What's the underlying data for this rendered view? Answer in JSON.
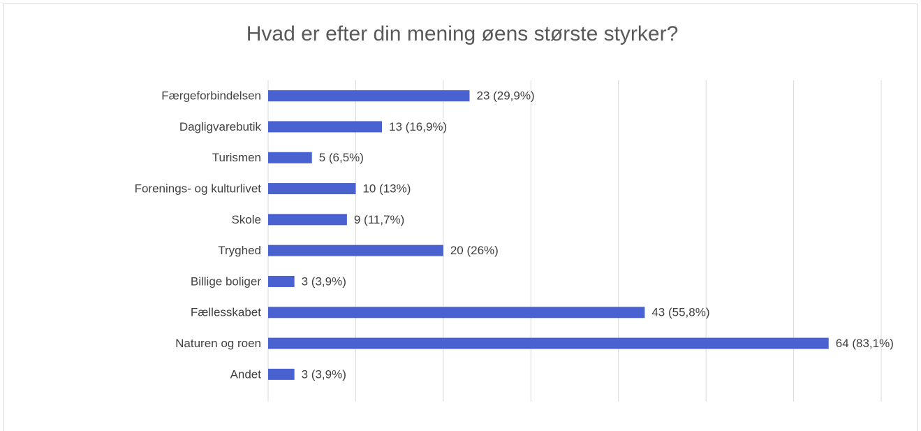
{
  "chart_data": {
    "type": "bar",
    "orientation": "horizontal",
    "title": "Hvad er efter din mening øens største styrker?",
    "categories": [
      "Færgeforbindelsen",
      "Dagligvarebutik",
      "Turismen",
      "Forenings- og kulturlivet",
      "Skole",
      "Tryghed",
      "Billige boliger",
      "Fællesskabet",
      "Naturen og roen",
      "Andet"
    ],
    "values": [
      23,
      13,
      5,
      10,
      9,
      20,
      3,
      43,
      64,
      3
    ],
    "value_labels": [
      "23 (29,9%)",
      "13 (16,9%)",
      "5 (6,5%)",
      "10 (13%)",
      "9 (11,7%)",
      "20 (26%)",
      "3 (3,9%)",
      "43 (55,8%)",
      "64 (83,1%)",
      "3 (3,9%)"
    ],
    "color": "#4a62d0",
    "xlim": [
      0,
      70
    ],
    "xticks": [
      0,
      10,
      20,
      30,
      40,
      50,
      60,
      70
    ],
    "grid": true
  }
}
